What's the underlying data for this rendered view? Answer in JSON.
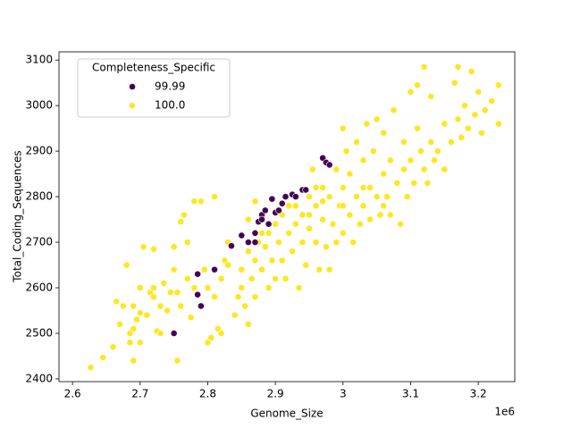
{
  "chart_data": {
    "type": "scatter",
    "x_label": "Genome_Size",
    "y_label": "Total_Coding_Sequences",
    "x_offset_label": "1e6",
    "legend_title": "Completeness_Specific",
    "legend_position": "upper left",
    "xlim": [
      2.58,
      3.254
    ],
    "ylim": [
      2394,
      3118
    ],
    "xticks": [
      2.6,
      2.7,
      2.8,
      2.9,
      3.0,
      3.1,
      3.2
    ],
    "yticks": [
      2400,
      2500,
      2600,
      2700,
      2800,
      2900,
      3000,
      3100
    ],
    "series": [
      {
        "name": "99.99",
        "color": "#440154",
        "x": [
          2.75,
          2.79,
          2.785,
          2.785,
          2.81,
          2.835,
          2.85,
          2.86,
          2.87,
          2.875,
          2.88,
          2.885,
          2.89,
          2.9,
          2.91,
          2.915,
          2.925,
          2.93,
          2.94,
          2.945,
          2.97,
          2.975,
          2.98,
          2.88,
          2.895,
          2.87,
          2.905
        ],
        "values": [
          2500,
          2560,
          2585,
          2630,
          2640,
          2692,
          2715,
          2700,
          2720,
          2745,
          2760,
          2770,
          2740,
          2765,
          2785,
          2800,
          2805,
          2800,
          2815,
          2815,
          2885,
          2875,
          2870,
          2750,
          2795,
          2700,
          2770
        ]
      },
      {
        "name": "100.0",
        "color": "#fde725",
        "x": [
          2.627,
          2.645,
          2.66,
          2.67,
          2.665,
          2.675,
          2.68,
          2.685,
          2.69,
          2.69,
          2.695,
          2.7,
          2.7,
          2.705,
          2.71,
          2.715,
          2.72,
          2.72,
          2.725,
          2.73,
          2.73,
          2.735,
          2.74,
          2.745,
          2.75,
          2.755,
          2.755,
          2.76,
          2.76,
          2.765,
          2.77,
          2.77,
          2.775,
          2.78,
          2.78,
          2.79,
          2.795,
          2.8,
          2.8,
          2.805,
          2.81,
          2.81,
          2.815,
          2.82,
          2.82,
          2.825,
          2.83,
          2.83,
          2.84,
          2.845,
          2.85,
          2.85,
          2.855,
          2.86,
          2.86,
          2.865,
          2.87,
          2.87,
          2.875,
          2.88,
          2.885,
          2.89,
          2.89,
          2.895,
          2.9,
          2.9,
          2.905,
          2.91,
          2.91,
          2.915,
          2.92,
          2.92,
          2.925,
          2.93,
          2.935,
          2.94,
          2.94,
          2.945,
          2.95,
          2.95,
          2.955,
          2.96,
          2.96,
          2.965,
          2.97,
          2.97,
          2.975,
          2.98,
          2.98,
          2.985,
          2.99,
          2.99,
          2.995,
          3.0,
          3.0,
          3.0,
          3.005,
          3.01,
          3.01,
          3.015,
          3.02,
          3.02,
          3.025,
          3.03,
          3.03,
          3.035,
          3.04,
          3.04,
          3.045,
          3.05,
          3.05,
          3.055,
          3.06,
          3.06,
          3.065,
          3.07,
          3.07,
          3.075,
          3.08,
          3.085,
          3.09,
          3.09,
          3.095,
          3.1,
          3.1,
          3.105,
          3.11,
          3.11,
          3.115,
          3.12,
          3.12,
          3.125,
          3.13,
          3.13,
          3.135,
          3.14,
          3.15,
          3.15,
          3.16,
          3.165,
          3.17,
          3.17,
          3.175,
          3.18,
          3.185,
          3.19,
          3.195,
          3.2,
          3.205,
          3.21,
          3.22,
          3.23,
          3.23,
          2.86,
          2.87,
          2.88,
          2.93,
          2.95,
          2.96,
          2.97,
          3.0,
          3.03,
          3.06,
          2.75,
          2.72,
          2.7,
          2.69,
          2.685
        ],
        "values": [
          2425,
          2447,
          2470,
          2520,
          2570,
          2560,
          2650,
          2480,
          2440,
          2510,
          2530,
          2545,
          2480,
          2690,
          2540,
          2590,
          2580,
          2685,
          2505,
          2500,
          2560,
          2610,
          2550,
          2590,
          2690,
          2440,
          2590,
          2560,
          2745,
          2760,
          2700,
          2620,
          2535,
          2790,
          2600,
          2790,
          2640,
          2480,
          2600,
          2490,
          2800,
          2580,
          2510,
          2500,
          2620,
          2660,
          2650,
          2700,
          2540,
          2580,
          2600,
          2640,
          2560,
          2520,
          2680,
          2620,
          2580,
          2660,
          2700,
          2640,
          2690,
          2600,
          2720,
          2660,
          2620,
          2740,
          2700,
          2760,
          2660,
          2620,
          2720,
          2780,
          2680,
          2740,
          2600,
          2760,
          2700,
          2650,
          2800,
          2730,
          2860,
          2780,
          2700,
          2640,
          2820,
          2750,
          2690,
          2800,
          2640,
          2740,
          2860,
          2700,
          2780,
          2950,
          2820,
          2720,
          2900,
          2760,
          2850,
          2700,
          2800,
          2920,
          2740,
          2880,
          2780,
          2960,
          2820,
          2750,
          2900,
          2800,
          2970,
          2760,
          2850,
          2940,
          2800,
          2880,
          2760,
          2990,
          2830,
          2740,
          2860,
          2920,
          2800,
          3030,
          2880,
          2830,
          2950,
          3045,
          2900,
          3085,
          2860,
          2830,
          2920,
          3020,
          2880,
          2900,
          2860,
          2960,
          2920,
          3050,
          2970,
          3085,
          2930,
          3000,
          2950,
          3075,
          2980,
          3030,
          2940,
          2990,
          3010,
          2960,
          3045,
          2750,
          2790,
          2720,
          2780,
          2760,
          2820,
          2790,
          2780,
          2820,
          2780,
          2640,
          2600,
          2600,
          2560,
          2500
        ]
      }
    ]
  }
}
